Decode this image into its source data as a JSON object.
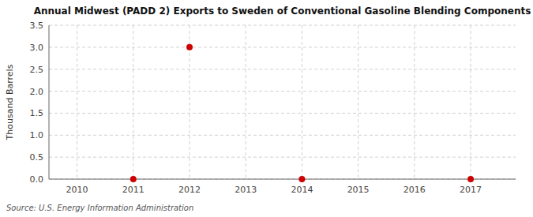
{
  "chart_data": {
    "type": "scatter",
    "title": "Annual Midwest (PADD 2) Exports to Sweden of Conventional Gasoline Blending Components",
    "y_label": "Thousand Barrels",
    "source": "Source: U.S. Energy Information Administration",
    "x": [
      2011,
      2012,
      2014,
      2017
    ],
    "values": [
      0.0,
      3.0,
      0.0,
      0.0
    ],
    "color": "#cc0000",
    "xlim": [
      2009.5,
      2017.8
    ],
    "ylim": [
      0.0,
      3.5
    ],
    "xticks": [
      2010,
      2011,
      2012,
      2013,
      2014,
      2015,
      2016,
      2017
    ],
    "yticks": [
      {
        "value": 0.0,
        "label": "0.0"
      },
      0.5,
      {
        "value": 1.0,
        "label": "1.0"
      },
      1.5,
      {
        "value": 2.0,
        "label": "2.0"
      },
      2.5,
      {
        "value": 3.0,
        "label": "3.0"
      },
      3.5
    ],
    "grid": true
  }
}
